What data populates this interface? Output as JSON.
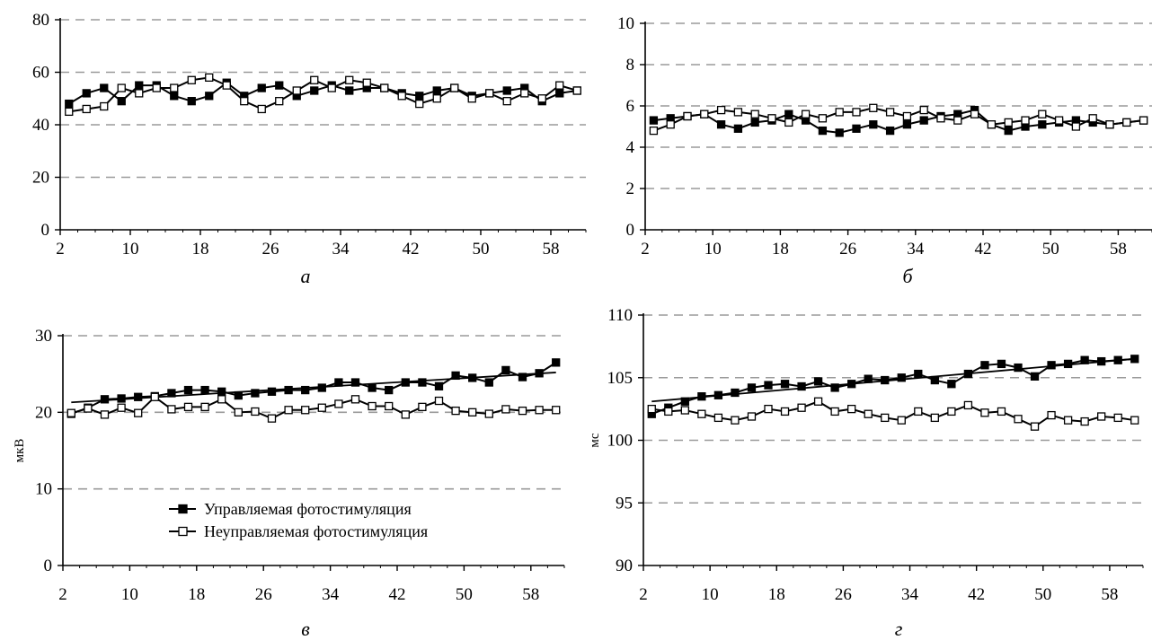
{
  "chart_data": [
    {
      "id": "a",
      "type": "line",
      "panel_label": "а",
      "ylabel": "",
      "xlim": [
        2,
        62
      ],
      "ylim": [
        0,
        80
      ],
      "yticks": [
        0,
        20,
        40,
        60,
        80
      ],
      "xticks": [
        2,
        10,
        18,
        26,
        34,
        42,
        50,
        58
      ],
      "grid": true,
      "trendlines": false,
      "x": [
        3,
        5,
        7,
        9,
        11,
        13,
        15,
        17,
        19,
        21,
        23,
        25,
        27,
        29,
        31,
        33,
        35,
        37,
        39,
        41,
        43,
        45,
        47,
        49,
        51,
        53,
        55,
        57,
        59,
        61
      ],
      "series": [
        {
          "marker": "filled",
          "values": [
            48,
            52,
            54,
            49,
            55,
            55,
            51,
            49,
            51,
            56,
            51,
            54,
            55,
            51,
            53,
            55,
            53,
            54,
            54,
            52,
            51,
            53,
            54,
            51,
            52,
            53,
            54,
            49,
            52,
            53
          ]
        },
        {
          "marker": "open",
          "values": [
            45,
            46,
            47,
            54,
            52,
            54,
            54,
            57,
            58,
            55,
            49,
            46,
            49,
            53,
            57,
            54,
            57,
            56,
            54,
            51,
            48,
            50,
            54,
            50,
            52,
            49,
            52,
            50,
            55,
            53
          ]
        }
      ]
    },
    {
      "id": "b",
      "type": "line",
      "panel_label": "б",
      "ylabel": "",
      "xlim": [
        2,
        62
      ],
      "ylim": [
        0,
        10
      ],
      "yticks": [
        0,
        2,
        4,
        6,
        8,
        10
      ],
      "xticks": [
        2,
        10,
        18,
        26,
        34,
        42,
        50,
        58
      ],
      "grid": true,
      "trendlines": false,
      "x": [
        3,
        5,
        7,
        9,
        11,
        13,
        15,
        17,
        19,
        21,
        23,
        25,
        27,
        29,
        31,
        33,
        35,
        37,
        39,
        41,
        43,
        45,
        47,
        49,
        51,
        53,
        55,
        57,
        59,
        61
      ],
      "series": [
        {
          "marker": "filled",
          "values": [
            5.3,
            5.4,
            5.5,
            5.6,
            5.1,
            4.9,
            5.2,
            5.3,
            5.6,
            5.3,
            4.8,
            4.7,
            4.9,
            5.1,
            4.8,
            5.1,
            5.3,
            5.5,
            5.6,
            5.8,
            5.1,
            4.8,
            5.0,
            5.1,
            5.2,
            5.3,
            5.2,
            5.1,
            5.2,
            5.3
          ]
        },
        {
          "marker": "open",
          "values": [
            4.8,
            5.1,
            5.5,
            5.6,
            5.8,
            5.7,
            5.6,
            5.4,
            5.2,
            5.6,
            5.4,
            5.7,
            5.7,
            5.9,
            5.7,
            5.5,
            5.8,
            5.4,
            5.3,
            5.6,
            5.1,
            5.2,
            5.3,
            5.6,
            5.3,
            5.0,
            5.4,
            5.1,
            5.2,
            5.3
          ]
        }
      ]
    },
    {
      "id": "c",
      "type": "line",
      "panel_label": "в",
      "ylabel": "мкВ",
      "xlim": [
        2,
        62
      ],
      "ylim": [
        0,
        30
      ],
      "yticks": [
        0,
        10,
        20,
        30
      ],
      "xticks": [
        2,
        10,
        18,
        26,
        34,
        42,
        50,
        58
      ],
      "grid": true,
      "trendlines": true,
      "x": [
        3,
        5,
        7,
        9,
        11,
        13,
        15,
        17,
        19,
        21,
        23,
        25,
        27,
        29,
        31,
        33,
        35,
        37,
        39,
        41,
        43,
        45,
        47,
        49,
        51,
        53,
        55,
        57,
        59,
        61
      ],
      "series": [
        {
          "name": "Управляемая фотостимуляция",
          "marker": "filled",
          "values": [
            19.8,
            20.6,
            21.7,
            21.8,
            22.0,
            22.1,
            22.5,
            22.9,
            22.9,
            22.7,
            22.2,
            22.5,
            22.7,
            22.9,
            22.9,
            23.2,
            23.9,
            23.9,
            23.2,
            22.9,
            23.9,
            23.9,
            23.4,
            24.8,
            24.5,
            23.9,
            25.5,
            24.6,
            25.1,
            26.5
          ]
        },
        {
          "name": "Неуправляемая фотостимуляция",
          "marker": "open",
          "values": [
            19.9,
            20.5,
            19.7,
            20.6,
            19.9,
            22.0,
            20.4,
            20.7,
            20.7,
            21.7,
            20.0,
            20.1,
            19.2,
            20.3,
            20.3,
            20.6,
            21.1,
            21.7,
            20.8,
            20.8,
            19.7,
            20.7,
            21.5,
            20.2,
            20.0,
            19.8,
            20.4,
            20.2,
            20.3,
            20.3
          ]
        }
      ],
      "trend": [
        [
          3,
          21.3
        ],
        [
          61,
          25.2
        ]
      ]
    },
    {
      "id": "d",
      "type": "line",
      "panel_label": "г",
      "ylabel": "мс",
      "xlim": [
        2,
        62
      ],
      "ylim": [
        90,
        110
      ],
      "yticks": [
        90,
        95,
        100,
        105,
        110
      ],
      "xticks": [
        2,
        10,
        18,
        26,
        34,
        42,
        50,
        58
      ],
      "grid": true,
      "trendlines": true,
      "x": [
        3,
        5,
        7,
        9,
        11,
        13,
        15,
        17,
        19,
        21,
        23,
        25,
        27,
        29,
        31,
        33,
        35,
        37,
        39,
        41,
        43,
        45,
        47,
        49,
        51,
        53,
        55,
        57,
        59,
        61
      ],
      "series": [
        {
          "marker": "filled",
          "values": [
            102.1,
            102.6,
            103.1,
            103.5,
            103.6,
            103.8,
            104.2,
            104.4,
            104.5,
            104.3,
            104.7,
            104.2,
            104.5,
            104.9,
            104.8,
            105.0,
            105.3,
            104.8,
            104.5,
            105.3,
            106.0,
            106.1,
            105.8,
            105.1,
            106.0,
            106.1,
            106.4,
            106.3,
            106.4,
            106.5
          ]
        },
        {
          "marker": "open",
          "values": [
            102.5,
            102.3,
            102.4,
            102.1,
            101.8,
            101.6,
            101.9,
            102.5,
            102.3,
            102.6,
            103.1,
            102.3,
            102.5,
            102.1,
            101.8,
            101.6,
            102.3,
            101.8,
            102.3,
            102.8,
            102.2,
            102.3,
            101.7,
            101.1,
            102.0,
            101.6,
            101.5,
            101.9,
            101.8,
            101.6
          ]
        }
      ],
      "trend": [
        [
          3,
          103.1
        ],
        [
          61,
          106.5
        ]
      ]
    }
  ]
}
